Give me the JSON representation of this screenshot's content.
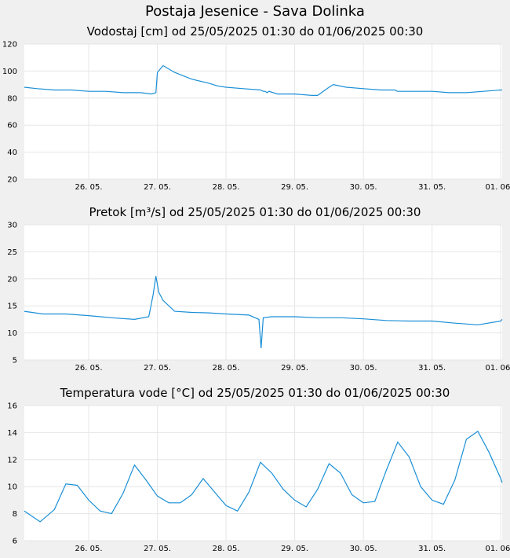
{
  "page": {
    "title": "Postaja Jesenice - Sava Dolinka"
  },
  "colors": {
    "line": "#1a8fd6",
    "plot_bg": "#ffffff",
    "page_bg": "#f0f0f0",
    "grid": "#e6e6e6"
  },
  "chart_data": [
    {
      "type": "line",
      "title": "Vodostaj [cm] od 25/05/2025 01:30 do 01/06/2025 00:30",
      "xlabel": "",
      "ylabel": "",
      "x_range": [
        "2025-05-25 01:30",
        "2025-06-01 00:30"
      ],
      "xticks": [
        "26. 05.",
        "27. 05.",
        "28. 05.",
        "29. 05.",
        "30. 05.",
        "31. 05.",
        "01. 06."
      ],
      "ylim": [
        20,
        120
      ],
      "yticks": [
        20,
        40,
        60,
        80,
        100,
        120
      ],
      "grid": true,
      "series": [
        {
          "color": "#1a8fd6",
          "x": [
            "2025-05-25 01:30",
            "2025-05-25 06:00",
            "2025-05-25 12:00",
            "2025-05-25 18:00",
            "2025-05-26 00:00",
            "2025-05-26 06:00",
            "2025-05-26 12:00",
            "2025-05-26 18:00",
            "2025-05-26 22:00",
            "2025-05-26 23:30",
            "2025-05-27 00:00",
            "2025-05-27 02:00",
            "2025-05-27 06:00",
            "2025-05-27 12:00",
            "2025-05-27 18:00",
            "2025-05-27 21:00",
            "2025-05-28 00:00",
            "2025-05-28 06:00",
            "2025-05-28 12:00",
            "2025-05-28 13:00",
            "2025-05-28 13:40",
            "2025-05-28 14:20",
            "2025-05-28 15:00",
            "2025-05-28 18:00",
            "2025-05-29 00:00",
            "2025-05-29 06:00",
            "2025-05-29 08:00",
            "2025-05-29 12:00",
            "2025-05-29 13:30",
            "2025-05-29 18:00",
            "2025-05-30 00:00",
            "2025-05-30 06:00",
            "2025-05-30 11:00",
            "2025-05-30 11:50",
            "2025-05-30 12:40",
            "2025-05-30 13:30",
            "2025-05-30 18:00",
            "2025-05-31 00:00",
            "2025-05-31 06:00",
            "2025-05-31 12:00",
            "2025-05-31 18:00",
            "2025-06-01 00:00",
            "2025-06-01 00:30"
          ],
          "values": [
            88,
            87,
            86,
            86,
            85,
            85,
            84,
            84,
            83,
            84,
            99,
            104,
            99,
            94,
            91,
            89,
            88,
            87,
            86,
            85,
            85,
            84,
            85,
            83,
            83,
            82,
            82,
            88,
            90,
            88,
            87,
            86,
            86,
            85,
            85,
            85,
            85,
            85,
            84,
            84,
            85,
            86,
            86
          ]
        }
      ]
    },
    {
      "type": "line",
      "title": "Pretok [m³/s] od 25/05/2025 01:30 do 01/06/2025 00:30",
      "xlabel": "",
      "ylabel": "",
      "x_range": [
        "2025-05-25 01:30",
        "2025-06-01 00:30"
      ],
      "xticks": [
        "26. 05.",
        "27. 05.",
        "28. 05.",
        "29. 05.",
        "30. 05.",
        "31. 05.",
        "01. 06."
      ],
      "ylim": [
        5,
        30
      ],
      "yticks": [
        5,
        10,
        15,
        20,
        25,
        30
      ],
      "grid": true,
      "series": [
        {
          "color": "#1a8fd6",
          "x": [
            "2025-05-25 01:30",
            "2025-05-25 08:00",
            "2025-05-25 16:00",
            "2025-05-26 00:00",
            "2025-05-26 08:00",
            "2025-05-26 16:00",
            "2025-05-26 21:00",
            "2025-05-26 22:30",
            "2025-05-26 23:30",
            "2025-05-27 00:30",
            "2025-05-27 02:00",
            "2025-05-27 06:00",
            "2025-05-27 12:00",
            "2025-05-27 18:00",
            "2025-05-28 00:00",
            "2025-05-28 08:00",
            "2025-05-28 11:30",
            "2025-05-28 12:15",
            "2025-05-28 13:00",
            "2025-05-28 16:00",
            "2025-05-29 00:00",
            "2025-05-29 08:00",
            "2025-05-29 16:00",
            "2025-05-30 00:00",
            "2025-05-30 08:00",
            "2025-05-30 16:00",
            "2025-05-31 00:00",
            "2025-05-31 08:00",
            "2025-05-31 16:00",
            "2025-06-01 00:00",
            "2025-06-01 00:30"
          ],
          "values": [
            14,
            13.5,
            13.5,
            13.2,
            12.8,
            12.5,
            13,
            17,
            20.5,
            17.5,
            16,
            14,
            13.8,
            13.7,
            13.5,
            13.3,
            12.5,
            7.2,
            12.8,
            13,
            13,
            12.8,
            12.8,
            12.6,
            12.3,
            12.2,
            12.2,
            11.8,
            11.5,
            12.2,
            12.5
          ]
        }
      ]
    },
    {
      "type": "line",
      "title": "Temperatura vode [°C] od 25/05/2025 01:30 do 01/06/2025 00:30",
      "xlabel": "",
      "ylabel": "",
      "x_range": [
        "2025-05-25 01:30",
        "2025-06-01 00:30"
      ],
      "xticks": [
        "26. 05.",
        "27. 05.",
        "28. 05.",
        "29. 05.",
        "30. 05.",
        "31. 05.",
        "01. 06."
      ],
      "ylim": [
        6,
        16
      ],
      "yticks": [
        6,
        8,
        10,
        12,
        14,
        16
      ],
      "grid": true,
      "series": [
        {
          "color": "#1a8fd6",
          "x": [
            "2025-05-25 01:30",
            "2025-05-25 07:00",
            "2025-05-25 12:00",
            "2025-05-25 16:00",
            "2025-05-25 20:00",
            "2025-05-26 00:00",
            "2025-05-26 04:00",
            "2025-05-26 08:00",
            "2025-05-26 12:00",
            "2025-05-26 16:00",
            "2025-05-26 20:00",
            "2025-05-27 00:00",
            "2025-05-27 04:00",
            "2025-05-27 08:00",
            "2025-05-27 12:00",
            "2025-05-27 16:00",
            "2025-05-27 20:00",
            "2025-05-28 00:00",
            "2025-05-28 04:00",
            "2025-05-28 08:00",
            "2025-05-28 12:00",
            "2025-05-28 16:00",
            "2025-05-28 20:00",
            "2025-05-29 00:00",
            "2025-05-29 04:00",
            "2025-05-29 08:00",
            "2025-05-29 12:00",
            "2025-05-29 16:00",
            "2025-05-29 20:00",
            "2025-05-30 00:00",
            "2025-05-30 04:00",
            "2025-05-30 08:00",
            "2025-05-30 12:00",
            "2025-05-30 16:00",
            "2025-05-30 20:00",
            "2025-05-31 00:00",
            "2025-05-31 04:00",
            "2025-05-31 08:00",
            "2025-05-31 12:00",
            "2025-05-31 16:00",
            "2025-05-31 20:00",
            "2025-06-01 00:00",
            "2025-06-01 00:30"
          ],
          "values": [
            8.2,
            7.4,
            8.3,
            10.2,
            10.1,
            9.0,
            8.2,
            8.0,
            9.5,
            11.6,
            10.5,
            9.3,
            8.8,
            8.8,
            9.4,
            10.6,
            9.6,
            8.6,
            8.2,
            9.6,
            11.8,
            11.0,
            9.8,
            9.0,
            8.5,
            9.8,
            11.7,
            11.0,
            9.4,
            8.8,
            8.9,
            11.2,
            13.3,
            12.2,
            10.0,
            9.0,
            8.7,
            10.5,
            13.5,
            14.1,
            12.5,
            10.6,
            10.3
          ]
        }
      ]
    }
  ]
}
